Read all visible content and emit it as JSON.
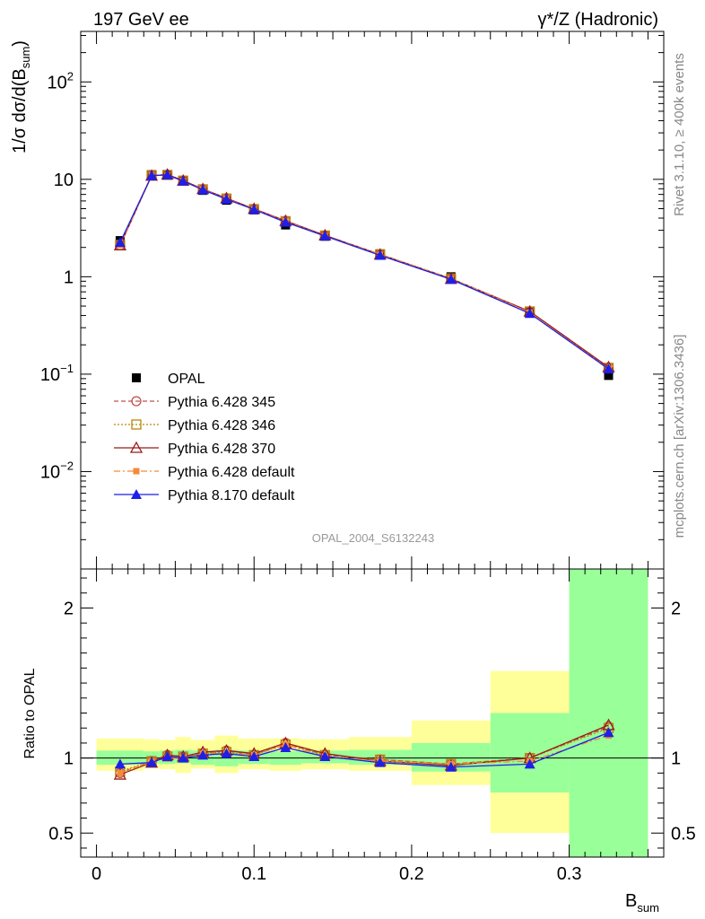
{
  "header": {
    "left": "197 GeV ee",
    "right": "γ*/Z (Hadronic)"
  },
  "side_labels": {
    "rivet": "Rivet 3.1.10, ≥ 400k events",
    "mcplots": "mcplots.cern.ch [arXiv:1306.3436]"
  },
  "analysis_id": "OPAL_2004_S6132243",
  "colors": {
    "opal": "#000000",
    "py345": "#c0504d",
    "py346": "#b8860b",
    "py370": "#9b1b1b",
    "pydef": "#f58a3a",
    "py8": "#1f1fe6",
    "band_inner": "#99ff99",
    "band_outer": "#ffff99"
  },
  "chart_data": [
    {
      "type": "line",
      "panel": "main",
      "ylabel": "1/σ dσ/d(B_sum)",
      "yscale": "log",
      "ylim": [
        0.001,
        330
      ],
      "xlim": [
        -0.01,
        0.36
      ],
      "y_ticks": [
        "10^-2",
        "10^-1",
        "1",
        "10",
        "10^2"
      ],
      "legend_position": "lower-left",
      "x": [
        0.015,
        0.035,
        0.045,
        0.055,
        0.0675,
        0.0825,
        0.1,
        0.12,
        0.145,
        0.18,
        0.225,
        0.275,
        0.325
      ],
      "x_bin_edges": [
        0.0,
        0.03,
        0.04,
        0.05,
        0.06,
        0.075,
        0.09,
        0.11,
        0.13,
        0.16,
        0.2,
        0.25,
        0.3,
        0.35
      ],
      "series": [
        {
          "name": "OPAL",
          "marker": "square",
          "values": [
            2.35,
            11.2,
            11.0,
            9.6,
            7.7,
            6.1,
            4.85,
            3.4,
            2.6,
            1.72,
            1.0,
            0.44,
            0.097
          ]
        },
        {
          "name": "Pythia 6.428 345",
          "marker": "open-circle",
          "line": "dashed",
          "values": [
            2.1,
            11.0,
            11.2,
            9.7,
            7.9,
            6.4,
            4.95,
            3.75,
            2.65,
            1.7,
            0.96,
            0.44,
            0.117
          ]
        },
        {
          "name": "Pythia 6.428 346",
          "marker": "open-square",
          "line": "dotted",
          "values": [
            2.12,
            11.0,
            11.1,
            9.7,
            7.9,
            6.35,
            4.95,
            3.72,
            2.65,
            1.7,
            0.96,
            0.44,
            0.116
          ]
        },
        {
          "name": "Pythia 6.428 370",
          "marker": "open-triangle",
          "line": "solid",
          "values": [
            2.1,
            10.9,
            11.2,
            9.7,
            7.95,
            6.4,
            4.98,
            3.75,
            2.66,
            1.69,
            0.95,
            0.44,
            0.118
          ]
        },
        {
          "name": "Pythia 6.428 default",
          "marker": "filled-square",
          "line": "dashdot",
          "values": [
            2.12,
            11.0,
            11.0,
            9.6,
            7.9,
            6.3,
            4.93,
            3.7,
            2.63,
            1.69,
            0.96,
            0.43,
            0.112
          ]
        },
        {
          "name": "Pythia 8.170 default",
          "marker": "filled-triangle",
          "line": "solid",
          "values": [
            2.25,
            10.9,
            11.1,
            9.6,
            7.8,
            6.25,
            4.9,
            3.63,
            2.62,
            1.66,
            0.94,
            0.42,
            0.113
          ]
        }
      ]
    },
    {
      "type": "line",
      "panel": "ratio",
      "ylabel": "Ratio to OPAL",
      "xlabel": "B_sum",
      "ylim": [
        0.34,
        2.26
      ],
      "xlim": [
        -0.01,
        0.36
      ],
      "y_ticks": [
        "0.5",
        "1",
        "2"
      ],
      "x_ticks": [
        "0",
        "0.1",
        "0.2",
        "0.3"
      ],
      "x": [
        0.015,
        0.035,
        0.045,
        0.055,
        0.0675,
        0.0825,
        0.1,
        0.12,
        0.145,
        0.18,
        0.225,
        0.275,
        0.325
      ],
      "x_bin_edges": [
        0.0,
        0.03,
        0.04,
        0.05,
        0.06,
        0.075,
        0.09,
        0.11,
        0.13,
        0.16,
        0.2,
        0.25,
        0.3,
        0.35
      ],
      "band_inner": {
        "lo": [
          0.955,
          0.965,
          0.96,
          0.965,
          0.955,
          0.945,
          0.96,
          0.955,
          0.965,
          0.955,
          0.91,
          0.77,
          0.3
        ],
        "hi": [
          1.05,
          1.045,
          1.05,
          1.055,
          1.05,
          1.055,
          1.05,
          1.045,
          1.05,
          1.055,
          1.1,
          1.3,
          2.3
        ]
      },
      "band_outer": {
        "lo": [
          0.915,
          0.93,
          0.925,
          0.9,
          0.93,
          0.9,
          0.925,
          0.915,
          0.925,
          0.915,
          0.82,
          0.5,
          0.3
        ],
        "hi": [
          1.13,
          1.125,
          1.12,
          1.14,
          1.12,
          1.15,
          1.13,
          1.13,
          1.125,
          1.14,
          1.25,
          1.58,
          2.3
        ]
      },
      "series": [
        {
          "name": "Pythia 6.428 345",
          "values": [
            0.9,
            0.98,
            1.02,
            1.01,
            1.03,
            1.05,
            1.02,
            1.1,
            1.02,
            0.99,
            0.96,
            1.0,
            1.21
          ]
        },
        {
          "name": "Pythia 6.428 346",
          "values": [
            0.91,
            0.98,
            1.01,
            1.01,
            1.03,
            1.04,
            1.02,
            1.09,
            1.02,
            0.99,
            0.96,
            1.0,
            1.2
          ]
        },
        {
          "name": "Pythia 6.428 370",
          "values": [
            0.89,
            0.97,
            1.02,
            1.01,
            1.04,
            1.05,
            1.03,
            1.1,
            1.03,
            0.98,
            0.95,
            1.0,
            1.22
          ]
        },
        {
          "name": "Pythia 6.428 default",
          "values": [
            0.9,
            0.98,
            1.0,
            1.0,
            1.03,
            1.03,
            1.02,
            1.09,
            1.01,
            0.98,
            0.96,
            0.98,
            1.15
          ]
        },
        {
          "name": "Pythia 8.170 default",
          "values": [
            0.96,
            0.97,
            1.01,
            1.0,
            1.02,
            1.03,
            1.01,
            1.07,
            1.01,
            0.97,
            0.94,
            0.96,
            1.17
          ]
        }
      ]
    }
  ]
}
